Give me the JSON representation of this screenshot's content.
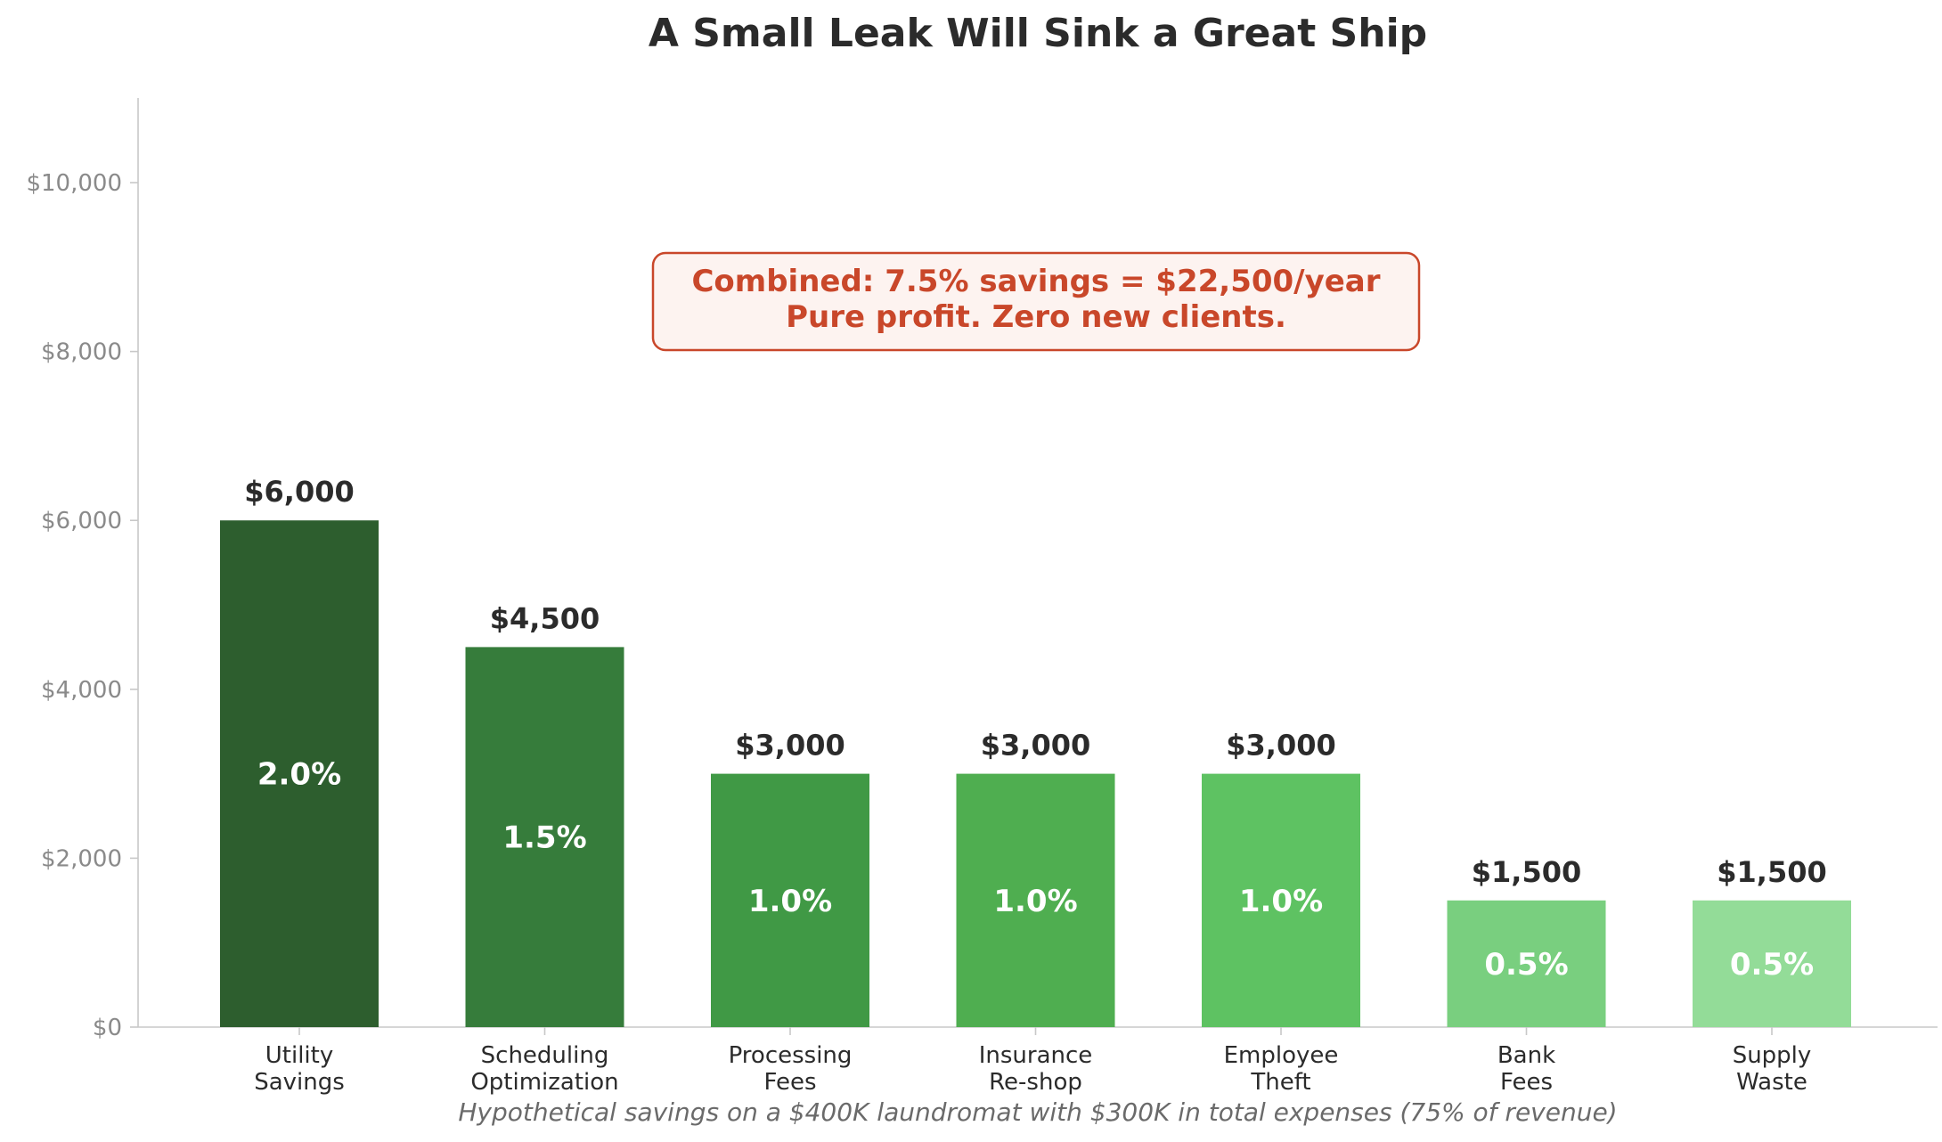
{
  "chart_data": {
    "type": "bar",
    "title": "A Small Leak Will Sink a Great Ship",
    "categories": [
      [
        "Utility",
        "Savings"
      ],
      [
        "Scheduling",
        "Optimization"
      ],
      [
        "Processing",
        "Fees"
      ],
      [
        "Insurance",
        "Re-shop"
      ],
      [
        "Employee",
        "Theft"
      ],
      [
        "Bank",
        "Fees"
      ],
      [
        "Supply",
        "Waste"
      ]
    ],
    "values": [
      6000,
      4500,
      3000,
      3000,
      3000,
      1500,
      1500
    ],
    "value_labels": [
      "$6,000",
      "$4,500",
      "$3,000",
      "$3,000",
      "$3,000",
      "$1,500",
      "$1,500"
    ],
    "percent_labels": [
      "2.0%",
      "1.5%",
      "1.0%",
      "1.0%",
      "1.0%",
      "0.5%",
      "0.5%"
    ],
    "bar_colors": [
      "#2d5e2e",
      "#367c3b",
      "#409945",
      "#4fae50",
      "#5ec262",
      "#79cf7f",
      "#93dc98"
    ],
    "ylim": [
      0,
      11000
    ],
    "yticks": [
      0,
      2000,
      4000,
      6000,
      8000,
      10000
    ],
    "ytick_labels": [
      "$0",
      "$2,000",
      "$4,000",
      "$6,000",
      "$8,000",
      "$10,000"
    ],
    "grid": false,
    "annotation": {
      "lines": [
        "Combined: 7.5% savings = $22,500/year",
        "Pure profit. Zero new clients."
      ],
      "text_color": "#c9472a",
      "box_fill": "#fdf3f0",
      "box_stroke": "#c9472a"
    },
    "footnote": "Hypothetical savings on a $400K laundromat with $300K in total expenses (75% of revenue)"
  }
}
